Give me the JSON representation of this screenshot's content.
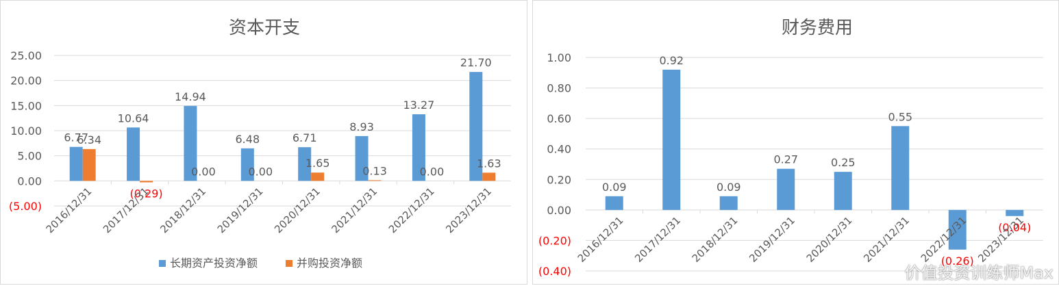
{
  "watermark": "价值投资训练师Max",
  "colors": {
    "series1": "#5b9bd5",
    "series2": "#ed7d31",
    "negative": "#ff0000",
    "grid": "#d9d9d9",
    "text": "#595959"
  },
  "chart_data": [
    {
      "type": "bar",
      "title": "资本开支",
      "categories": [
        "2016/12/31",
        "2017/12/31",
        "2018/12/31",
        "2019/12/31",
        "2020/12/31",
        "2021/12/31",
        "2022/12/31",
        "2023/12/31"
      ],
      "series": [
        {
          "name": "长期资产投资净额",
          "values": [
            6.77,
            10.64,
            14.94,
            6.48,
            6.71,
            8.93,
            13.27,
            21.7
          ],
          "labels": [
            "6.77",
            "10.64",
            "14.94",
            "6.48",
            "6.71",
            "8.93",
            "13.27",
            "21.70"
          ]
        },
        {
          "name": "并购投资净额",
          "values": [
            6.34,
            -0.29,
            0.0,
            0.0,
            1.65,
            0.13,
            0.0,
            1.63
          ],
          "labels": [
            "6.34",
            "(0.29)",
            "0.00",
            "0.00",
            "1.65",
            "0.13",
            "0.00",
            "1.63"
          ]
        }
      ],
      "y_ticks": [
        25,
        20,
        15,
        10,
        5,
        0,
        -5
      ],
      "y_tick_labels": [
        "25.00",
        "20.00",
        "15.00",
        "10.00",
        "5.00",
        "0.00",
        "(5.00)"
      ],
      "ylim": [
        -5,
        25
      ],
      "grid": true,
      "legend": "bottom"
    },
    {
      "type": "bar",
      "title": "财务费用",
      "categories": [
        "2016/12/31",
        "2017/12/31",
        "2018/12/31",
        "2019/12/31",
        "2020/12/31",
        "2021/12/31",
        "2022/12/31",
        "2023/12/31"
      ],
      "series": [
        {
          "values": [
            0.09,
            0.92,
            0.09,
            0.27,
            0.25,
            0.55,
            -0.26,
            -0.04
          ],
          "labels": [
            "0.09",
            "0.92",
            "0.09",
            "0.27",
            "0.25",
            "0.55",
            "(0.26)",
            "(0.04)"
          ]
        }
      ],
      "y_ticks": [
        1,
        0.8,
        0.6,
        0.4,
        0.2,
        0,
        -0.2,
        -0.4
      ],
      "y_tick_labels": [
        "1.00",
        "0.80",
        "0.60",
        "0.40",
        "0.20",
        "0.00",
        "(0.20)",
        "(0.40)"
      ],
      "ylim": [
        -0.4,
        1.0
      ],
      "grid": true,
      "legend": "none"
    }
  ]
}
